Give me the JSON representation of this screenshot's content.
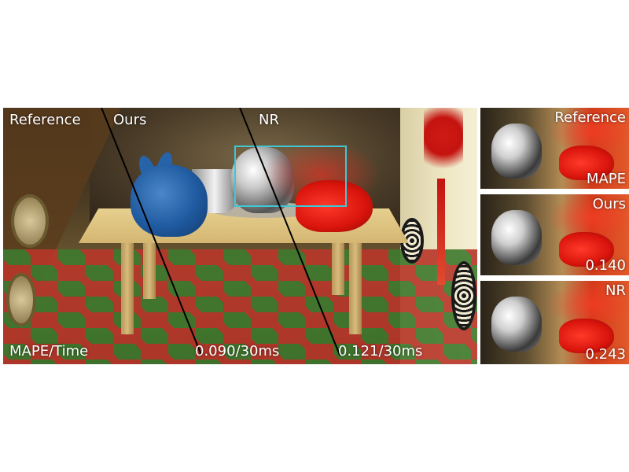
{
  "main_panel": {
    "labels": {
      "reference": "Reference",
      "ours": "Ours",
      "nr": "NR",
      "metric_header": "MAPE/Time",
      "ours_metric": "0.090/30ms",
      "nr_metric": "0.121/30ms"
    },
    "inset_box_color": "#3fc7d6"
  },
  "crops": [
    {
      "top_label": "Reference",
      "bottom_label": "MAPE"
    },
    {
      "top_label": "Ours",
      "bottom_label": "0.140"
    },
    {
      "top_label": "NR",
      "bottom_label": "0.243"
    }
  ]
}
